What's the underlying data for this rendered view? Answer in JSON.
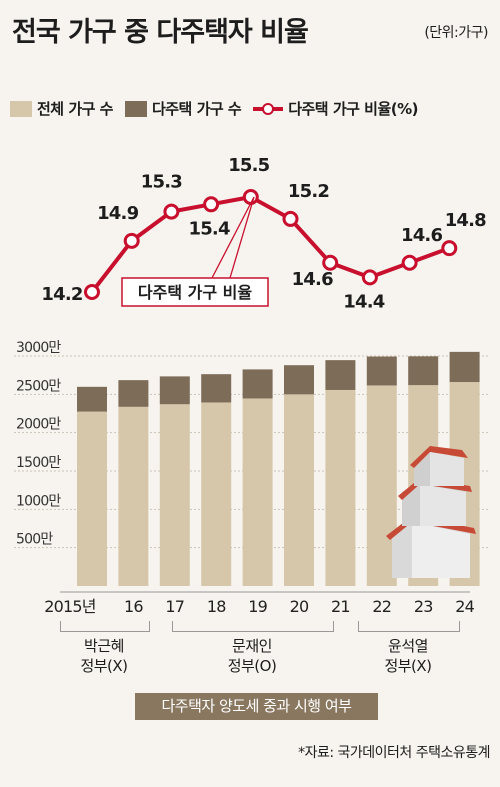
{
  "title": "전국 가구 중 다주택자 비율",
  "unit": "(단위:가구)",
  "legend": {
    "total": "전체 가구 수",
    "multi": "다주택 가구 수",
    "ratio": "다주택 가구 비율(%)"
  },
  "line_label": "다주택 가구 비율",
  "colors": {
    "total": "#d6c7ab",
    "multi": "#7d6c58",
    "line": "#c8102e"
  },
  "chart_data": {
    "type": "bar+line",
    "categories": [
      "2015년",
      "16",
      "17",
      "18",
      "19",
      "20",
      "21",
      "22",
      "23",
      "24"
    ],
    "series": [
      {
        "name": "전체 가구 수",
        "values": [
          22750000,
          23370000,
          23710000,
          23940000,
          24460000,
          25000000,
          25570000,
          26160000,
          26200000,
          26600000
        ]
      },
      {
        "name": "다주택 가구 수",
        "values": [
          3230000,
          3480000,
          3630000,
          3690000,
          3790000,
          3800000,
          3890000,
          3770000,
          3760000,
          3940000
        ]
      },
      {
        "name": "다주택 가구 비율(%)",
        "values": [
          14.2,
          14.9,
          15.3,
          15.4,
          15.5,
          15.2,
          14.6,
          14.4,
          14.6,
          14.8
        ]
      }
    ],
    "y_ticks": [
      "500만",
      "1000만",
      "1500만",
      "2000만",
      "2500만",
      "3000만"
    ],
    "ylim": [
      0,
      30000000
    ]
  },
  "governments": [
    {
      "name": "박근혜",
      "status": "정부(X)"
    },
    {
      "name": "문재인",
      "status": "정부(O)"
    },
    {
      "name": "윤석열",
      "status": "정부(X)"
    }
  ],
  "policy_label": "다주택자 양도세 중과 시행 여부",
  "source": "*자료: 국가데이터처 주택소유통계"
}
